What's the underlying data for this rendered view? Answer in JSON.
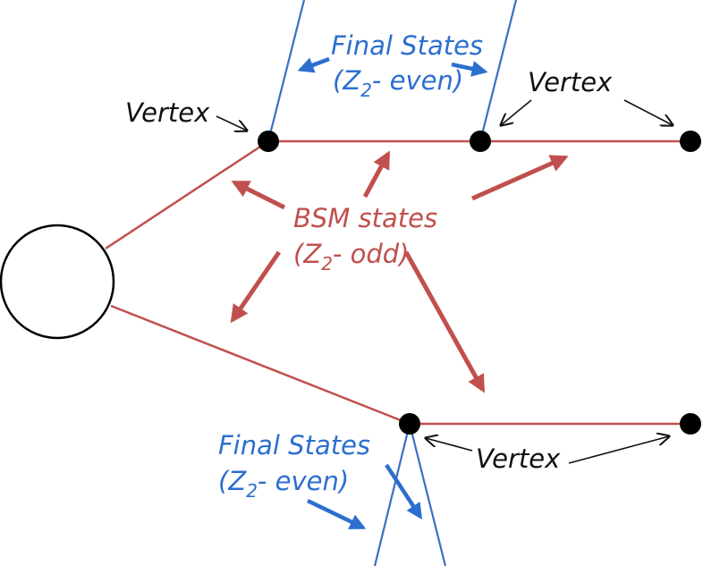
{
  "colors": {
    "sm_line": "#c0504d",
    "final_line": "#3a6fc4",
    "label_final": "#2b6fcf",
    "label_bsm": "#c0504d",
    "vertex_label": "#111111",
    "node": "#000000"
  },
  "labels": {
    "final_top_line1": "Final States",
    "final_top_line2_open": "(Z",
    "final_top_line2_sub": "2",
    "final_top_line2_rest": "- even)",
    "bsm_line1": "BSM states",
    "bsm_line2_open": "(Z",
    "bsm_line2_sub": "2",
    "bsm_line2_rest": "- odd)",
    "final_bottom_line1": "Final States",
    "final_bottom_line2_open": "(Z",
    "final_bottom_line2_sub": "2",
    "final_bottom_line2_rest": "- even)",
    "vertex_left": "Vertex",
    "vertex_top_right": "Vertex",
    "vertex_bottom": "Vertex"
  }
}
